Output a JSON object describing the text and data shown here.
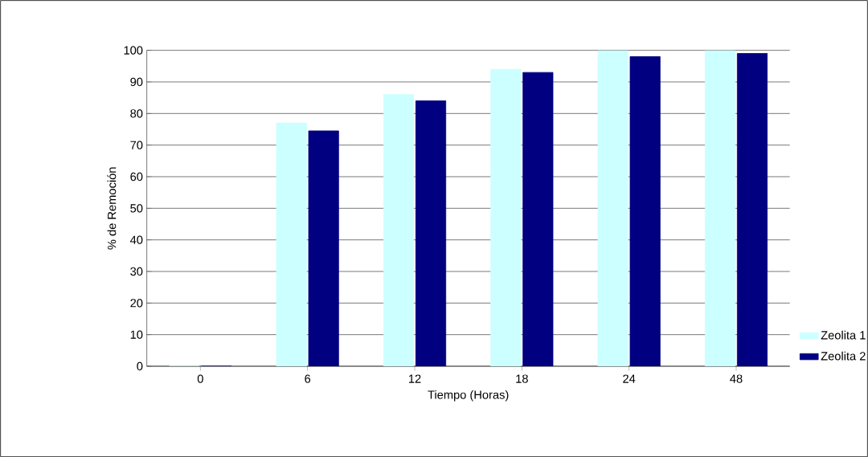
{
  "chart_data": {
    "type": "bar",
    "xlabel": "Tiempo (Horas)",
    "ylabel": "% de Remoción",
    "categories": [
      "0",
      "6",
      "12",
      "18",
      "24",
      "48"
    ],
    "series": [
      {
        "name": "Zeolita 1",
        "color": "#ccffff",
        "values": [
          0,
          77,
          86,
          94,
          100,
          100
        ]
      },
      {
        "name": "Zeolita 2",
        "color": "#000080",
        "values": [
          0,
          74.5,
          84,
          93,
          98,
          99
        ]
      }
    ],
    "ylim": [
      0,
      100
    ],
    "yticks": [
      0,
      10,
      20,
      30,
      40,
      50,
      60,
      70,
      80,
      90,
      100
    ],
    "grid": "y",
    "legend": "right"
  }
}
